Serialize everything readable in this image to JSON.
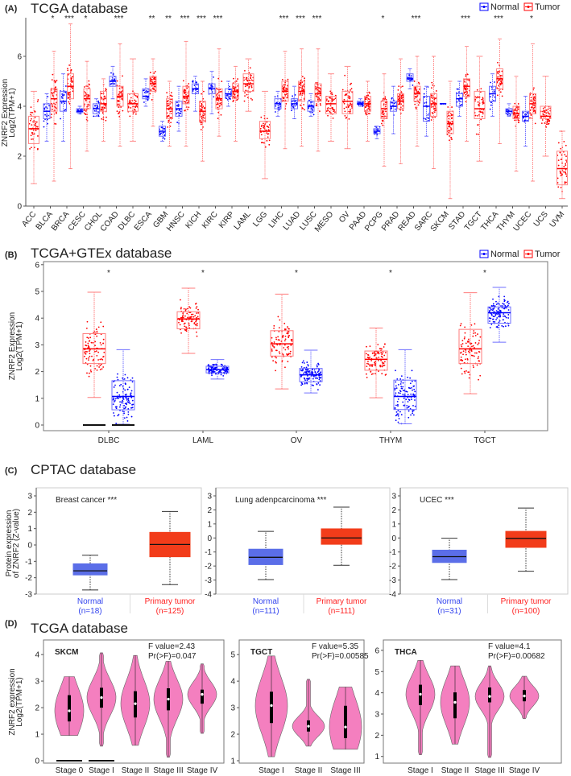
{
  "legend": {
    "normal": "Normal",
    "tumor": "Tumor"
  },
  "colors": {
    "normal": "#0000ff",
    "tumor": "#ff0000",
    "cptac_normal": "#5b6ee8",
    "cptac_tumor": "#f23c1a",
    "violin": "#f47fbf"
  },
  "chart_data": [
    {
      "type": "box",
      "panel": "(A)",
      "title": "TCGA database",
      "ylabel": [
        "ZNRF2 Expression",
        "Log2(TPM+1)"
      ],
      "ylim": [
        0,
        7.6
      ],
      "yticks": [
        "0",
        "2",
        "4",
        "6"
      ],
      "legend": "top-right",
      "stat_order": [
        "min",
        "q1",
        "median",
        "q3",
        "max"
      ],
      "categories": [
        "ACC",
        "BLCA",
        "BRCA",
        "CESC",
        "CHOL",
        "COAD",
        "DLBC",
        "ESCA",
        "GBM",
        "HNSC",
        "KICH",
        "KIRC",
        "KIRP",
        "LAML",
        "LGG",
        "LIHC",
        "LUAD",
        "LUSC",
        "MESO",
        "OV",
        "PAAD",
        "PCPG",
        "PRAD",
        "READ",
        "SARC",
        "SKCM",
        "STAD",
        "TGCT",
        "THCA",
        "THYM",
        "UCEC",
        "UCS",
        "UVM"
      ],
      "significance": [
        "",
        "*",
        "***",
        "*",
        "",
        "***",
        "",
        "**",
        "**",
        "***",
        "***",
        "***",
        "",
        "",
        "",
        "***",
        "***",
        "***",
        "",
        "",
        "",
        "*",
        "",
        "***",
        "",
        "",
        "***",
        "",
        "***",
        "",
        "*",
        "",
        ""
      ],
      "normal": [
        null,
        [
          2.6,
          3.5,
          3.8,
          4.1,
          4.5
        ],
        [
          2.6,
          3.8,
          4.2,
          4.6,
          5.3
        ],
        [
          3.7,
          3.75,
          3.8,
          3.9,
          4.0
        ],
        [
          3.6,
          3.7,
          3.9,
          4.1,
          4.3
        ],
        [
          4.3,
          4.8,
          5.0,
          5.2,
          5.6
        ],
        null,
        [
          4.0,
          4.3,
          4.4,
          4.7,
          5.1
        ],
        [
          2.6,
          2.8,
          3.0,
          3.2,
          3.4
        ],
        [
          3.0,
          3.6,
          3.9,
          4.2,
          4.8
        ],
        [
          3.8,
          4.5,
          4.7,
          4.9,
          5.2
        ],
        [
          3.7,
          4.5,
          4.7,
          4.9,
          5.4
        ],
        [
          4.0,
          4.4,
          4.5,
          4.7,
          5.0
        ],
        null,
        null,
        [
          3.6,
          3.9,
          4.1,
          4.3,
          4.6
        ],
        [
          3.5,
          3.9,
          4.1,
          4.3,
          4.8
        ],
        [
          3.6,
          3.8,
          4.0,
          4.2,
          4.5
        ],
        null,
        null,
        [
          4.0,
          4.1,
          4.1,
          4.2,
          4.3
        ],
        [
          2.7,
          2.9,
          3.0,
          3.1,
          3.2
        ],
        [
          2.9,
          3.8,
          4.0,
          4.2,
          4.8
        ],
        [
          4.7,
          5.0,
          5.1,
          5.3,
          5.5
        ],
        [
          2.8,
          3.4,
          4.0,
          4.4,
          4.8
        ],
        [
          4.1,
          4.1,
          4.1,
          4.1,
          4.1
        ],
        [
          3.6,
          4.0,
          4.3,
          4.5,
          5.0
        ],
        null,
        [
          3.6,
          4.2,
          4.5,
          4.8,
          5.3
        ],
        [
          3.6,
          3.7,
          3.8,
          3.9,
          4.1
        ],
        [
          2.4,
          3.4,
          3.6,
          3.8,
          4.4
        ],
        null,
        null
      ],
      "tumor": [
        [
          0.9,
          2.5,
          3.1,
          3.6,
          4.6
        ],
        [
          1.0,
          3.8,
          4.3,
          4.7,
          6.2
        ],
        [
          1.5,
          4.3,
          4.8,
          5.3,
          7.3
        ],
        [
          2.2,
          3.9,
          4.3,
          4.7,
          5.8
        ],
        [
          2.6,
          3.8,
          4.1,
          4.6,
          5.1
        ],
        [
          2.4,
          4.0,
          4.4,
          4.8,
          6.5
        ],
        [
          2.6,
          3.8,
          4.1,
          4.5,
          5.9
        ],
        [
          3.2,
          4.6,
          4.9,
          5.2,
          5.9
        ],
        [
          2.4,
          3.5,
          3.9,
          4.3,
          5.0
        ],
        [
          2.4,
          4.1,
          4.4,
          4.8,
          6.6
        ],
        [
          1.8,
          3.4,
          3.8,
          4.2,
          5.0
        ],
        [
          2.8,
          3.9,
          4.3,
          4.7,
          6.3
        ],
        [
          2.6,
          4.3,
          4.6,
          4.9,
          5.6
        ],
        [
          3.8,
          4.6,
          4.9,
          5.3,
          5.9
        ],
        [
          1.1,
          2.7,
          3.0,
          3.4,
          4.6
        ],
        [
          2.3,
          4.2,
          4.6,
          5.0,
          6.2
        ],
        [
          2.4,
          4.2,
          4.6,
          5.0,
          6.3
        ],
        [
          2.2,
          4.2,
          4.5,
          4.9,
          6.3
        ],
        [
          2.6,
          3.7,
          4.1,
          4.4,
          5.3
        ],
        [
          2.3,
          3.7,
          4.2,
          4.6,
          5.6
        ],
        [
          2.6,
          3.8,
          4.1,
          4.4,
          5.0
        ],
        [
          1.6,
          3.5,
          3.9,
          4.2,
          5.3
        ],
        [
          1.7,
          3.9,
          4.2,
          4.5,
          5.9
        ],
        [
          2.4,
          4.2,
          4.5,
          4.8,
          6.0
        ],
        [
          1.5,
          3.6,
          4.1,
          4.5,
          6.0
        ],
        [
          0.3,
          2.9,
          3.3,
          3.8,
          5.0
        ],
        [
          2.6,
          4.4,
          4.8,
          5.1,
          6.4
        ],
        [
          1.8,
          3.5,
          3.9,
          4.6,
          6.0
        ],
        [
          2.5,
          4.7,
          5.1,
          5.5,
          6.7
        ],
        [
          1.4,
          3.5,
          3.7,
          4.0,
          5.2
        ],
        [
          1.0,
          3.7,
          4.1,
          4.5,
          6.5
        ],
        [
          2.0,
          3.5,
          3.6,
          4.0,
          5.2
        ],
        [
          0.3,
          0.85,
          1.5,
          2.2,
          3.0
        ]
      ]
    },
    {
      "type": "box",
      "panel": "(B)",
      "title": "TCGA+GTEx database",
      "ylabel": [
        "ZNRF2 Expression",
        "Log2(TPM+1)"
      ],
      "ylim": [
        0,
        6
      ],
      "yticks": [
        "0",
        "1",
        "2",
        "3",
        "4",
        "5",
        "6"
      ],
      "legend": "top-right",
      "stat_order": [
        "min",
        "q1",
        "median",
        "q3",
        "max"
      ],
      "categories": [
        "DLBC",
        "LAML",
        "OV",
        "THYM",
        "TGCT"
      ],
      "significance": [
        "*",
        "*",
        "*",
        "*",
        "*"
      ],
      "tumor": [
        [
          1.03,
          2.3,
          2.85,
          3.42,
          4.97
        ],
        [
          2.68,
          3.6,
          3.97,
          4.24,
          5.12
        ],
        [
          1.35,
          2.58,
          3.04,
          3.53,
          4.9
        ],
        [
          1.02,
          2.05,
          2.46,
          2.77,
          3.63
        ],
        [
          1.17,
          2.3,
          2.85,
          3.58,
          4.95
        ]
      ],
      "normal": [
        [
          0.03,
          0.57,
          1.07,
          1.66,
          2.82
        ],
        [
          1.72,
          1.95,
          2.07,
          2.2,
          2.45
        ],
        [
          1.2,
          1.62,
          1.88,
          2.12,
          2.8
        ],
        [
          0.05,
          0.58,
          1.07,
          1.68,
          2.82
        ],
        [
          3.1,
          3.81,
          4.2,
          4.42,
          5.15
        ]
      ]
    },
    {
      "type": "box",
      "panel": "(C)",
      "title": "CPTAC database",
      "ylabel": [
        "Protein expression",
        "of ZNRF2 (Z-value)"
      ],
      "stat_order": [
        "min",
        "q1",
        "median",
        "q3",
        "max"
      ],
      "charts": [
        {
          "title": "Breast cancer ***",
          "ylim": [
            -3,
            3
          ],
          "yticks": [
            "-3",
            "-2",
            "-1",
            "0",
            "1",
            "2",
            "3"
          ],
          "groups": [
            {
              "label": "Normal",
              "n": "(n=18)",
              "stats": [
                -2.75,
                -1.83,
                -1.58,
                -1.15,
                -0.63
              ]
            },
            {
              "label": "Primary tumor",
              "n": "(n=125)",
              "stats": [
                -2.42,
                -0.72,
                0.03,
                0.77,
                2.05
              ]
            }
          ]
        },
        {
          "title": "Lung adenpcarcinoma ***",
          "ylim": [
            -4,
            3
          ],
          "yticks": [
            "-4",
            "-3",
            "-2",
            "-1",
            "0",
            "1",
            "2",
            "3"
          ],
          "groups": [
            {
              "label": "Normal",
              "n": "(n=111)",
              "stats": [
                -2.97,
                -1.9,
                -1.38,
                -0.8,
                0.47
              ]
            },
            {
              "label": "Primary tumor",
              "n": "(n=111)",
              "stats": [
                -1.95,
                -0.45,
                0.0,
                0.65,
                2.2
              ]
            }
          ]
        },
        {
          "title": "UCEC ***",
          "ylim": [
            -4,
            3
          ],
          "yticks": [
            "-4",
            "-3",
            "-2",
            "-1",
            "0",
            "1",
            "2",
            "3"
          ],
          "groups": [
            {
              "label": "Normal",
              "n": "(n=31)",
              "stats": [
                -2.97,
                -1.75,
                -1.33,
                -0.87,
                -0.02
              ]
            },
            {
              "label": "Primary tumor",
              "n": "(n=100)",
              "stats": [
                -2.37,
                -0.67,
                -0.03,
                0.47,
                2.13
              ]
            }
          ]
        }
      ]
    },
    {
      "type": "violin",
      "panel": "(D)",
      "title": "TCGA database",
      "ylabel": [
        "ZNRF2 expression",
        "Log2(TPM+1)"
      ],
      "stat_order": [
        "min",
        "q1",
        "median",
        "q3",
        "max"
      ],
      "charts": [
        {
          "title": "SKCM",
          "f_value": "F value=2.43",
          "p_value": "Pr(>F)=0.047",
          "ylim": [
            0,
            4.4
          ],
          "yticks": [
            "0",
            "1",
            "2",
            "3",
            "4"
          ],
          "categories": [
            "Stage 0",
            "Stage I",
            "Stage II",
            "Stage III",
            "Stage IV"
          ],
          "stats": [
            [
              0.95,
              1.48,
              1.88,
              2.47,
              3.17
            ],
            [
              0.55,
              2.0,
              2.38,
              2.75,
              4.07
            ],
            [
              0.58,
              1.63,
              2.15,
              2.62,
              3.97
            ],
            [
              0.13,
              1.9,
              2.32,
              2.73,
              3.75
            ],
            [
              1.03,
              2.15,
              2.5,
              2.68,
              3.65
            ]
          ]
        },
        {
          "title": "TGCT",
          "f_value": "F value=5.35",
          "p_value": "Pr(>F)=0.00585",
          "ylim": [
            1,
            5.4
          ],
          "yticks": [
            "1",
            "2",
            "3",
            "4",
            "5"
          ],
          "categories": [
            "Stage I",
            "Stage II",
            "Stage III"
          ],
          "stats": [
            [
              1.15,
              2.42,
              3.08,
              3.6,
              4.95
            ],
            [
              1.55,
              2.1,
              2.3,
              2.52,
              4.07
            ],
            [
              1.43,
              1.85,
              2.27,
              3.07,
              3.78
            ]
          ]
        },
        {
          "title": "THCA",
          "f_value": "F value=4.1",
          "p_value": "Pr(>F)=0.00682",
          "ylim": [
            0.8,
            6.3
          ],
          "yticks": [
            "1",
            "2",
            "3",
            "4",
            "5",
            "6"
          ],
          "categories": [
            "Stage I",
            "Stage II",
            "Stage III",
            "Stage IV"
          ],
          "stats": [
            [
              1.08,
              3.42,
              3.93,
              4.38,
              5.53
            ],
            [
              1.58,
              2.8,
              3.55,
              4.02,
              5.27
            ],
            [
              0.95,
              3.55,
              3.83,
              4.25,
              5.27
            ],
            [
              2.78,
              3.6,
              3.85,
              4.13,
              4.78
            ]
          ]
        }
      ]
    }
  ]
}
